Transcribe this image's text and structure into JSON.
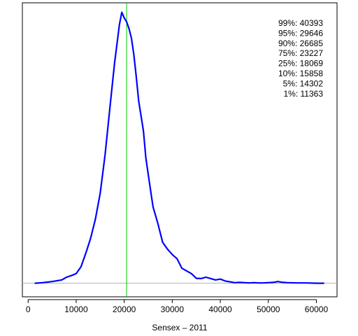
{
  "chart_data": {
    "type": "line",
    "title": "",
    "xlabel": "Sensex – 2011",
    "ylabel": "",
    "xlim": [
      -1200,
      64300
    ],
    "ylim": [
      -0.05,
      1.03
    ],
    "x_ticks": [
      0,
      10000,
      20000,
      30000,
      40000,
      50000,
      60000
    ],
    "y_axis_shown": false,
    "grid": false,
    "baseline": {
      "y": 0,
      "color": "#b3b3b3"
    },
    "reference_line": {
      "x": 20500,
      "color": "#00cc00"
    },
    "series": [
      {
        "color": "#0000ff",
        "points": [
          [
            1500,
            0.0
          ],
          [
            3000,
            0.002
          ],
          [
            5000,
            0.006
          ],
          [
            7000,
            0.012
          ],
          [
            8000,
            0.022
          ],
          [
            9000,
            0.028
          ],
          [
            10000,
            0.035
          ],
          [
            11000,
            0.06
          ],
          [
            12000,
            0.11
          ],
          [
            13000,
            0.165
          ],
          [
            14000,
            0.235
          ],
          [
            15000,
            0.33
          ],
          [
            16000,
            0.47
          ],
          [
            17000,
            0.64
          ],
          [
            18000,
            0.81
          ],
          [
            19000,
            0.95
          ],
          [
            19500,
            0.995
          ],
          [
            20000,
            0.975
          ],
          [
            20500,
            0.96
          ],
          [
            21000,
            0.935
          ],
          [
            21500,
            0.9
          ],
          [
            22000,
            0.84
          ],
          [
            22500,
            0.76
          ],
          [
            23000,
            0.67
          ],
          [
            24000,
            0.56
          ],
          [
            24500,
            0.46
          ],
          [
            25000,
            0.4
          ],
          [
            25500,
            0.34
          ],
          [
            26000,
            0.28
          ],
          [
            27000,
            0.22
          ],
          [
            28000,
            0.15
          ],
          [
            29000,
            0.125
          ],
          [
            30000,
            0.105
          ],
          [
            31000,
            0.09
          ],
          [
            32000,
            0.055
          ],
          [
            33000,
            0.045
          ],
          [
            34000,
            0.035
          ],
          [
            35000,
            0.018
          ],
          [
            36000,
            0.017
          ],
          [
            37000,
            0.022
          ],
          [
            38000,
            0.017
          ],
          [
            39000,
            0.012
          ],
          [
            40000,
            0.015
          ],
          [
            41000,
            0.008
          ],
          [
            42000,
            0.005
          ],
          [
            43000,
            0.002
          ],
          [
            44000,
            0.003
          ],
          [
            45000,
            0.002
          ],
          [
            46000,
            0.001
          ],
          [
            47000,
            0.002
          ],
          [
            48000,
            0.001
          ],
          [
            49000,
            0.001
          ],
          [
            50000,
            0.002
          ],
          [
            51000,
            0.003
          ],
          [
            52000,
            0.006
          ],
          [
            53000,
            0.003
          ],
          [
            54000,
            0.002
          ],
          [
            56000,
            0.001
          ],
          [
            58000,
            0.001
          ],
          [
            60000,
            0.0
          ],
          [
            61500,
            0.0
          ]
        ]
      }
    ],
    "annotations": [
      "99%: 40393",
      "95%: 29646",
      "90%: 26685",
      "75%: 23227",
      "25%: 18069",
      "10%: 15858",
      "5%: 14302",
      "1%: 11363"
    ]
  }
}
